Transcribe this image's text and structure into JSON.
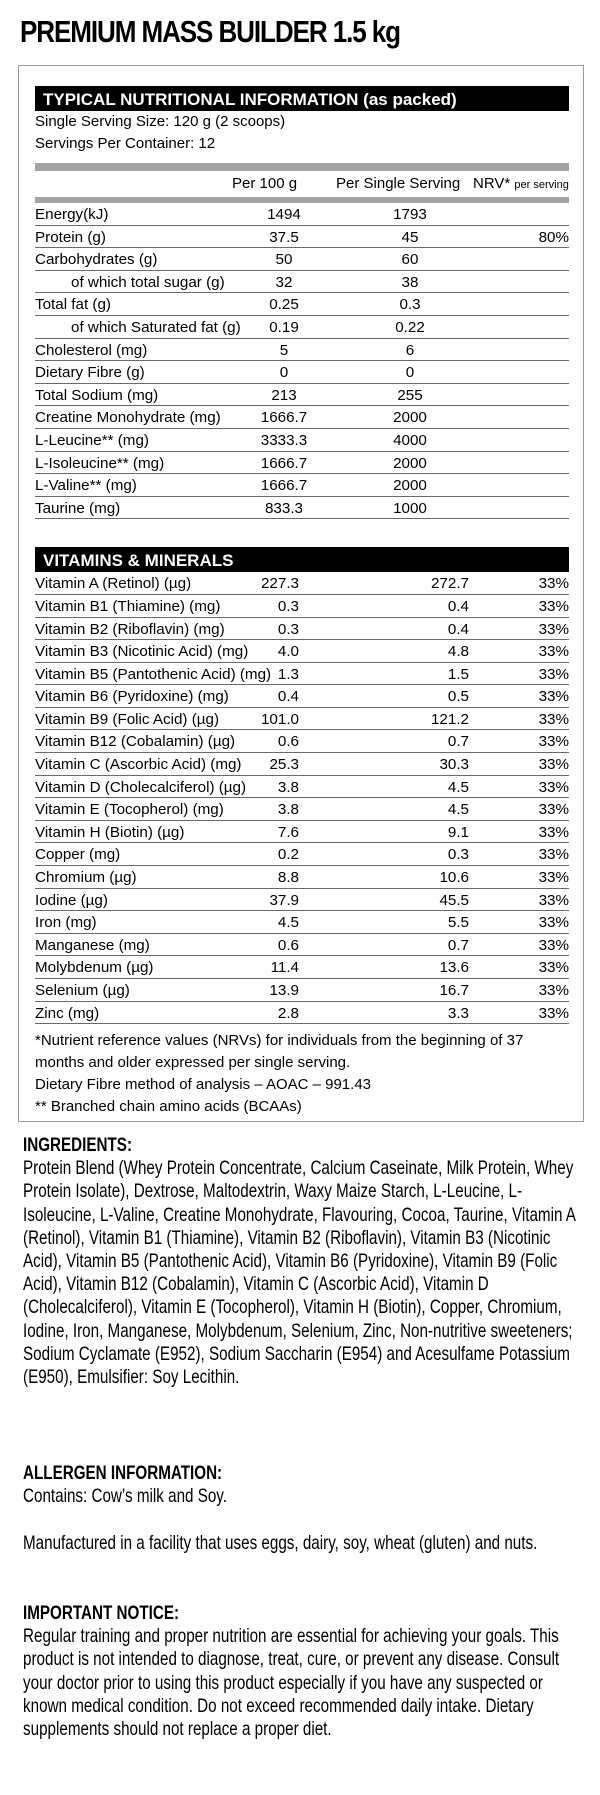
{
  "title": "PREMIUM MASS BUILDER 1.5 kg",
  "panel": {
    "heading": "TYPICAL NUTRITIONAL INFORMATION (as packed)",
    "serving_size": "Single Serving Size: 120 g (2 scoops)",
    "servings_per_container": "Servings Per Container: 12",
    "columns": {
      "per100": "Per 100 g",
      "perServing": "Per Single Serving",
      "nrv": "NRV*",
      "nrv_sub": "per serving"
    },
    "nutrients": [
      {
        "name": "Energy(kJ)",
        "per100": "1494",
        "serving": "1793",
        "nrv": ""
      },
      {
        "name": "Protein (g)",
        "per100": "37.5",
        "serving": "45",
        "nrv": "80%"
      },
      {
        "name": "Carbohydrates (g)",
        "per100": "50",
        "serving": "60",
        "nrv": ""
      },
      {
        "name": "of which total sugar (g)",
        "per100": "32",
        "serving": "38",
        "nrv": "",
        "indent": true
      },
      {
        "name": "Total fat (g)",
        "per100": "0.25",
        "serving": "0.3",
        "nrv": ""
      },
      {
        "name": "of which Saturated fat (g)",
        "per100": "0.19",
        "serving": "0.22",
        "nrv": "",
        "indent": true
      },
      {
        "name": "Cholesterol (mg)",
        "per100": "5",
        "serving": "6",
        "nrv": ""
      },
      {
        "name": "Dietary Fibre (g)",
        "per100": "0",
        "serving": "0",
        "nrv": ""
      },
      {
        "name": "Total Sodium (mg)",
        "per100": "213",
        "serving": "255",
        "nrv": ""
      },
      {
        "name": "Creatine Monohydrate (mg)",
        "per100": "1666.7",
        "serving": "2000",
        "nrv": ""
      },
      {
        "name": "L-Leucine** (mg)",
        "per100": "3333.3",
        "serving": "4000",
        "nrv": ""
      },
      {
        "name": "L-Isoleucine** (mg)",
        "per100": "1666.7",
        "serving": "2000",
        "nrv": ""
      },
      {
        "name": "L-Valine** (mg)",
        "per100": "1666.7",
        "serving": "2000",
        "nrv": ""
      },
      {
        "name": "Taurine (mg)",
        "per100": "833.3",
        "serving": "1000",
        "nrv": ""
      }
    ],
    "vitamins_heading": "VITAMINS & MINERALS",
    "vitamins": [
      {
        "name": "Vitamin A (Retinol) (µg)",
        "per100": "227.3",
        "serving": "272.7",
        "nrv": "33%"
      },
      {
        "name": "Vitamin B1 (Thiamine) (mg)",
        "per100": "0.3",
        "serving": "0.4",
        "nrv": "33%"
      },
      {
        "name": "Vitamin B2 (Riboflavin) (mg)",
        "per100": "0.3",
        "serving": "0.4",
        "nrv": "33%"
      },
      {
        "name": "Vitamin B3 (Nicotinic Acid) (mg)",
        "per100": "4.0",
        "serving": "4.8",
        "nrv": "33%"
      },
      {
        "name": "Vitamin B5 (Pantothenic Acid) (mg)",
        "per100": "1.3",
        "serving": "1.5",
        "nrv": "33%"
      },
      {
        "name": "Vitamin B6 (Pyridoxine) (mg)",
        "per100": "0.4",
        "serving": "0.5",
        "nrv": "33%"
      },
      {
        "name": "Vitamin B9 (Folic Acid) (µg)",
        "per100": "101.0",
        "serving": "121.2",
        "nrv": "33%"
      },
      {
        "name": "Vitamin B12 (Cobalamin) (µg)",
        "per100": "0.6",
        "serving": "0.7",
        "nrv": "33%"
      },
      {
        "name": "Vitamin C (Ascorbic Acid) (mg)",
        "per100": "25.3",
        "serving": "30.3",
        "nrv": "33%"
      },
      {
        "name": "Vitamin D (Cholecalciferol) (µg)",
        "per100": "3.8",
        "serving": "4.5",
        "nrv": "33%"
      },
      {
        "name": "Vitamin E (Tocopherol) (mg)",
        "per100": "3.8",
        "serving": "4.5",
        "nrv": "33%"
      },
      {
        "name": "Vitamin H (Biotin) (µg)",
        "per100": "7.6",
        "serving": "9.1",
        "nrv": "33%"
      },
      {
        "name": "Copper  (mg)",
        "per100": "0.2",
        "serving": "0.3",
        "nrv": "33%"
      },
      {
        "name": "Chromium (µg)",
        "per100": "8.8",
        "serving": "10.6",
        "nrv": "33%"
      },
      {
        "name": "Iodine (µg)",
        "per100": "37.9",
        "serving": "45.5",
        "nrv": "33%"
      },
      {
        "name": "Iron (mg)",
        "per100": "4.5",
        "serving": "5.5",
        "nrv": "33%"
      },
      {
        "name": "Manganese (mg)",
        "per100": "0.6",
        "serving": "0.7",
        "nrv": "33%"
      },
      {
        "name": "Molybdenum (µg)",
        "per100": "11.4",
        "serving": "13.6",
        "nrv": "33%"
      },
      {
        "name": "Selenium (µg)",
        "per100": "13.9",
        "serving": "16.7",
        "nrv": "33%"
      },
      {
        "name": "Zinc (mg)",
        "per100": "2.8",
        "serving": "3.3",
        "nrv": "33%"
      }
    ],
    "footnotes": [
      "*Nutrient reference values (NRVs) for individuals from the beginning of 37 months and older expressed per single serving.",
      "Dietary Fibre method of analysis – AOAC – 991.43",
      "** Branched chain amino acids (BCAAs)"
    ]
  },
  "ingredients": {
    "heading": "INGREDIENTS:",
    "text": "Protein Blend (Whey Protein Concentrate, Calcium Caseinate, Milk Protein, Whey Protein Isolate), Dextrose, Maltodextrin, Waxy Maize Starch, L-Leucine, L-Isoleucine, L-Valine, Creatine Monohydrate, Flavouring, Cocoa, Taurine, Vitamin A (Retinol), Vitamin B1 (Thiamine), Vitamin B2 (Riboflavin), Vitamin B3 (Nicotinic Acid), Vitamin B5 (Pantothenic Acid), Vitamin B6 (Pyridoxine), Vitamin B9 (Folic Acid), Vitamin B12 (Cobalamin), Vitamin C (Ascorbic Acid), Vitamin D (Cholecalciferol), Vitamin E (Tocopherol), Vitamin H (Biotin), Copper, Chromium, Iodine, Iron, Manganese, Molybdenum, Selenium, Zinc, Non-nutritive sweeteners; Sodium Cyclamate (E952), Sodium Saccharin (E954) and Acesulfame Potassium (E950), Emulsifier: Soy Lecithin."
  },
  "allergen": {
    "heading": "ALLERGEN INFORMATION:",
    "contains": "Contains: Cow’s milk and Soy.",
    "facility": "Manufactured in a facility that uses eggs, dairy, soy, wheat (gluten) and nuts."
  },
  "notice": {
    "heading": "IMPORTANT NOTICE:",
    "text": "Regular training and proper nutrition are essential for achieving your goals. This product is not intended to diagnose, treat, cure, or prevent any disease. Consult your doctor prior to using this product especially if you have any suspected or known medical condition. Do not exceed recommended daily intake. Dietary supplements should not replace a proper diet."
  }
}
